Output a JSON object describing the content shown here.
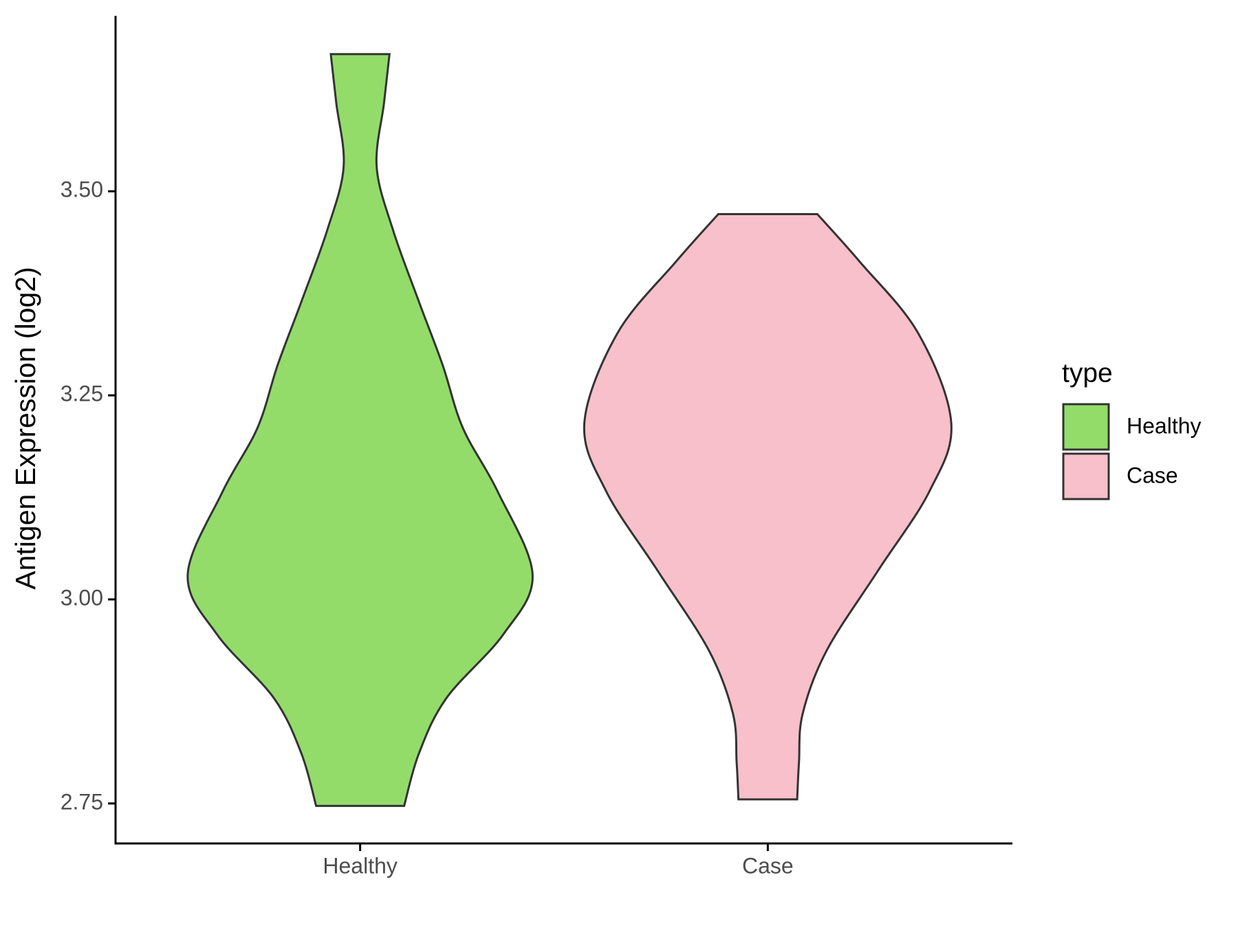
{
  "chart_data": {
    "type": "violin",
    "y_label": "Antigen Expression (log2)",
    "categories": [
      "Healthy",
      "Case"
    ],
    "series": [
      {
        "name": "Healthy",
        "color": "#93dc6a",
        "y": [
          3.668,
          3.608,
          3.53,
          3.452,
          3.365,
          3.287,
          3.21,
          3.132,
          3.03,
          2.957,
          2.879,
          2.811,
          2.747
        ],
        "density": [
          0.16,
          0.13,
          0.09,
          0.18,
          0.32,
          0.45,
          0.56,
          0.75,
          0.94,
          0.78,
          0.47,
          0.32,
          0.24
        ]
      },
      {
        "name": "Case",
        "color": "#f7c0cb",
        "y": [
          3.472,
          3.414,
          3.326,
          3.216,
          3.132,
          3.035,
          2.937,
          2.86,
          2.801,
          2.755
        ],
        "density": [
          0.27,
          0.5,
          0.82,
          1.0,
          0.88,
          0.6,
          0.32,
          0.19,
          0.17,
          0.16
        ]
      }
    ],
    "ylim": [
      2.701,
      3.715
    ],
    "yticks": [
      2.75,
      {
        "value": 3,
        "label": "3.00"
      },
      3.25,
      {
        "value": 3.5,
        "label": "3.50"
      }
    ],
    "legend_title": "type",
    "legend_position": "right"
  }
}
